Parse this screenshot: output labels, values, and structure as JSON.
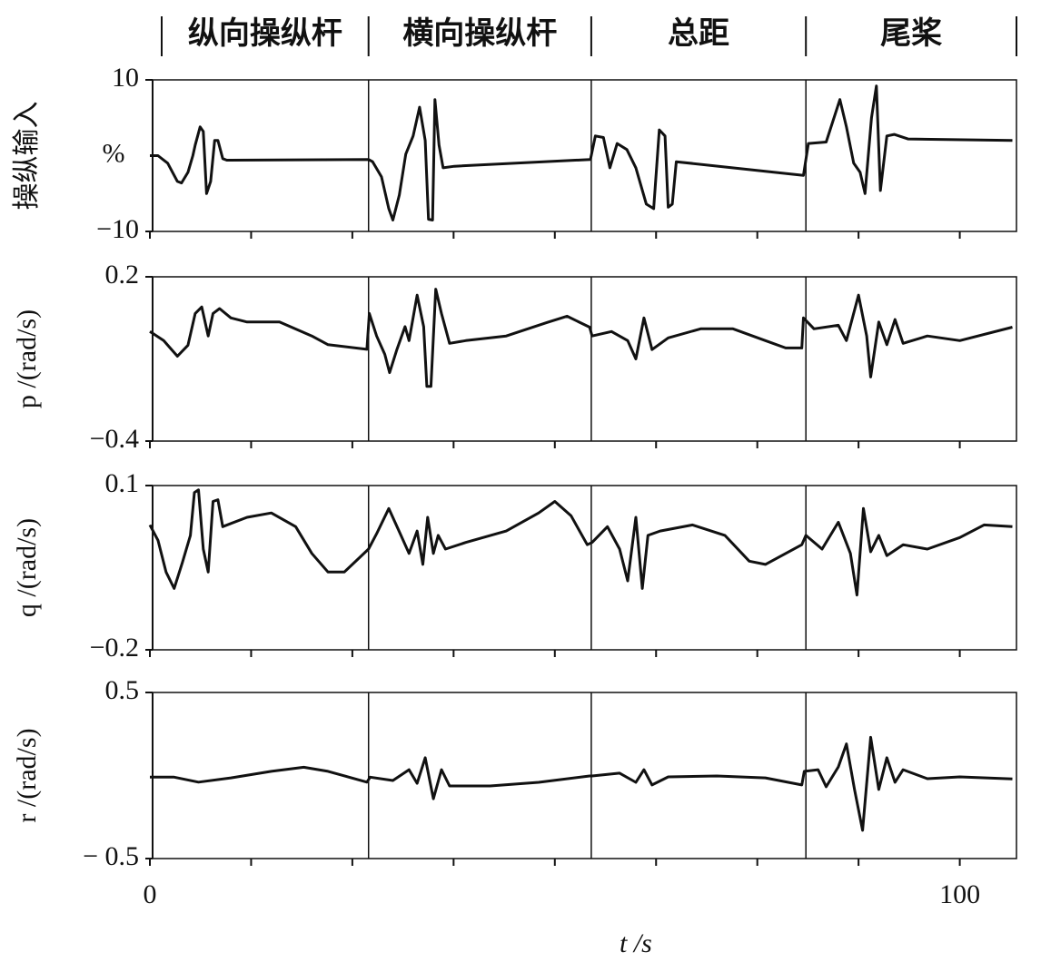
{
  "segments": [
    {
      "label": "纵向操纵杆",
      "start": 0,
      "end": 27
    },
    {
      "label": "横向操纵杆",
      "start": 27,
      "end": 54.5
    },
    {
      "label": "总距",
      "start": 54.5,
      "end": 81
    },
    {
      "label": "尾桨",
      "start": 81,
      "end": 107
    }
  ],
  "chart_data": [
    {
      "type": "line",
      "ylabel": "操纵输入",
      "y_unit": "%",
      "xlim": [
        0,
        107
      ],
      "ylim": [
        -10,
        10
      ],
      "yticks": [
        {
          "value": -10,
          "label": "−10"
        },
        10
      ],
      "x": [
        0,
        1,
        2.2,
        3.4,
        3.9,
        4.7,
        5.3,
        5.6,
        6.2,
        6.6,
        7,
        7.5,
        8,
        8.4,
        9,
        9.5,
        27,
        27.5,
        28.6,
        29.5,
        30,
        30.8,
        31.6,
        32.5,
        33.3,
        34,
        34.4,
        34.9,
        35.2,
        35.7,
        36.2,
        37.6,
        54.4,
        55,
        56,
        56.8,
        57.7,
        58.9,
        60,
        61.3,
        62.2,
        62.9,
        63.6,
        64,
        64.5,
        65,
        80.7,
        81.3,
        83.5,
        85.2,
        86,
        86.9,
        87.7,
        88.3,
        89.1,
        89.7,
        90.2,
        91,
        91.9,
        93.6,
        106.5
      ],
      "series": [
        {
          "color": "#111111",
          "values": [
            0,
            0,
            -1,
            -3.4,
            -3.6,
            -2.2,
            0,
            1.4,
            3.8,
            3.2,
            -5,
            -3.4,
            2,
            2,
            -0.4,
            -0.6,
            -0.5,
            -0.8,
            -2.8,
            -7,
            -8.5,
            -5.2,
            0.2,
            2.6,
            6.4,
            2,
            -8.4,
            -8.5,
            7.4,
            1.4,
            -1.6,
            -1.4,
            -0.5,
            2.6,
            2.4,
            -1.6,
            1.6,
            0.8,
            -1.6,
            -6.4,
            -7,
            3.4,
            2.6,
            -6.8,
            -6.4,
            -0.8,
            -2.6,
            1.6,
            1.8,
            7.4,
            3.8,
            -1,
            -2.2,
            -5,
            5,
            9.2,
            -4.6,
            2.6,
            2.8,
            2.2,
            2
          ]
        }
      ]
    },
    {
      "type": "line",
      "ylabel": "p /(rad/s)",
      "xlim": [
        0,
        107
      ],
      "ylim": [
        -0.4,
        0.2
      ],
      "yticks": [
        {
          "value": -0.4,
          "label": "−0.4"
        },
        0.2
      ],
      "x": [
        0,
        1.7,
        3.4,
        4.7,
        5.6,
        6.4,
        7.2,
        7.8,
        8.6,
        10,
        12,
        16,
        20,
        22,
        26.8,
        27.1,
        28,
        29,
        29.6,
        30.5,
        31.5,
        32,
        33,
        33.8,
        34.2,
        34.7,
        35.3,
        36,
        37,
        39,
        44,
        49,
        51.5,
        54.3,
        54.6,
        57,
        59,
        60,
        61,
        62,
        64,
        68,
        72,
        76,
        78.5,
        80.5,
        80.7,
        82,
        85,
        86,
        87.5,
        88.5,
        89,
        90,
        91,
        92,
        93,
        96,
        100,
        106.5
      ],
      "series": [
        {
          "color": "#111111",
          "values": [
            0,
            -0.033,
            -0.09,
            -0.05,
            0.066,
            0.09,
            -0.016,
            0.066,
            0.084,
            0.05,
            0.035,
            0.035,
            -0.016,
            -0.048,
            -0.065,
            0.066,
            -0.016,
            -0.083,
            -0.15,
            -0.066,
            0.018,
            -0.033,
            0.133,
            0.018,
            -0.2,
            -0.2,
            0.155,
            0.066,
            -0.043,
            -0.033,
            -0.016,
            0.033,
            0.056,
            0.016,
            -0.016,
            0,
            -0.033,
            -0.1,
            0.05,
            -0.066,
            -0.023,
            0.01,
            0.01,
            -0.033,
            -0.06,
            -0.06,
            0.05,
            0.01,
            0.023,
            -0.033,
            0.133,
            -0.016,
            -0.166,
            0.035,
            -0.048,
            0.044,
            -0.043,
            -0.016,
            -0.033,
            0.016
          ]
        }
      ]
    },
    {
      "type": "line",
      "ylabel": "q /(rad/s)",
      "xlim": [
        0,
        107
      ],
      "ylim": [
        -0.2,
        0.1
      ],
      "yticks": [
        {
          "value": -0.2,
          "label": "−0.2"
        },
        0.1
      ],
      "x": [
        0,
        1,
        2,
        3,
        4,
        5,
        5.5,
        6,
        6.6,
        7.2,
        7.8,
        8.4,
        9,
        12,
        15,
        18,
        20,
        22,
        24,
        27,
        28,
        29.5,
        31,
        32,
        33,
        33.7,
        34.3,
        35,
        35.6,
        36.5,
        39,
        44,
        48,
        50,
        52,
        54,
        54.6,
        56.5,
        58,
        59,
        60,
        60.8,
        61.5,
        63,
        67,
        71,
        74,
        76,
        80.5,
        81,
        83,
        85,
        86.5,
        87.3,
        88.1,
        89,
        90,
        91,
        93,
        96,
        100,
        103,
        106.5
      ],
      "series": [
        {
          "color": "#111111",
          "values": [
            0.028,
            0,
            -0.058,
            -0.088,
            -0.041,
            0.009,
            0.087,
            0.092,
            -0.016,
            -0.058,
            0.071,
            0.074,
            0.025,
            0.042,
            0.05,
            0.025,
            -0.024,
            -0.058,
            -0.058,
            -0.016,
            0.012,
            0.058,
            0.009,
            -0.024,
            0.017,
            -0.044,
            0.042,
            -0.024,
            0.009,
            -0.016,
            -0.004,
            0.017,
            0.05,
            0.071,
            0.045,
            -0.008,
            -0.004,
            0.025,
            -0.016,
            -0.074,
            0.042,
            -0.088,
            0.009,
            0.017,
            0.028,
            0.009,
            -0.038,
            -0.044,
            -0.008,
            0.009,
            -0.016,
            0.033,
            -0.024,
            -0.1,
            0.058,
            -0.021,
            0.009,
            -0.028,
            -0.008,
            -0.016,
            0.005,
            0.028,
            0.025
          ]
        }
      ]
    },
    {
      "type": "line",
      "ylabel": "r /(rad/s)",
      "xlabel": "t /s",
      "xlim": [
        0,
        107
      ],
      "ylim": [
        -0.5,
        0.5
      ],
      "yticks": [
        {
          "value": -0.5,
          "label": "− 0.5"
        },
        0.5
      ],
      "xticks": [
        0,
        100
      ],
      "xminorticks": [
        12.5,
        25,
        37.5,
        50,
        62.5,
        75,
        87.5
      ],
      "x": [
        0,
        3,
        6,
        10,
        15,
        19,
        22,
        26.8,
        27.2,
        30,
        32,
        33,
        34,
        35,
        36,
        37,
        42,
        48,
        54.3,
        54.6,
        58,
        60,
        61,
        62,
        64,
        70,
        76,
        80.5,
        80.8,
        82.5,
        83.5,
        85,
        86,
        87,
        88,
        89,
        90,
        91,
        92,
        93,
        96,
        100,
        106.5
      ],
      "series": [
        {
          "color": "#111111",
          "values": [
            -0.01,
            -0.01,
            -0.04,
            -0.014,
            0.025,
            0.05,
            0.025,
            -0.04,
            -0.01,
            -0.03,
            0.035,
            -0.047,
            0.107,
            -0.14,
            0.035,
            -0.063,
            -0.063,
            -0.041,
            -0.003,
            -0.003,
            0.014,
            -0.041,
            0.035,
            -0.057,
            -0.008,
            -0.003,
            -0.014,
            -0.057,
            0.025,
            0.035,
            -0.068,
            0.052,
            0.19,
            -0.084,
            -0.33,
            0.23,
            -0.084,
            0.107,
            -0.041,
            0.035,
            -0.019,
            -0.008,
            -0.02
          ]
        }
      ]
    }
  ]
}
